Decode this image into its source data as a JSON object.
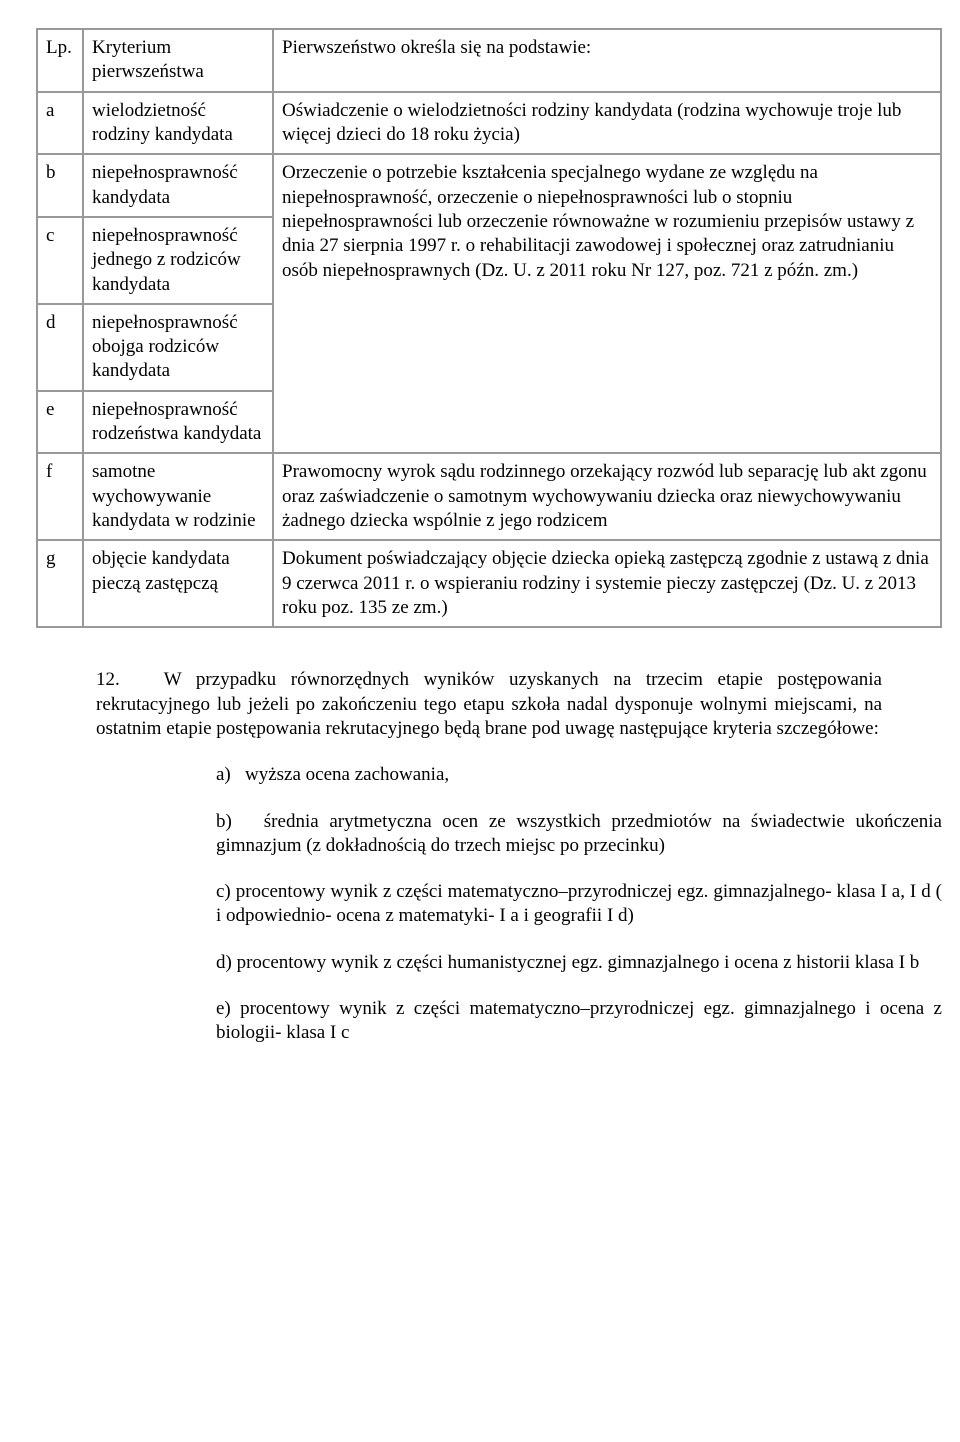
{
  "table": {
    "header": {
      "lp": "Lp.",
      "kryt": "Kryterium pierwszeństwa",
      "basis": "Pierwszeństwo określa się na podstawie:"
    },
    "rows_a_e": {
      "a": {
        "lp": "a",
        "kryt": "wielodzietność rodziny kandydata"
      },
      "b": {
        "lp": "b",
        "kryt": "niepełnosprawność kandydata"
      },
      "c": {
        "lp": "c",
        "kryt": "niepełnosprawność jednego z rodziców kandydata"
      },
      "d": {
        "lp": "d",
        "kryt": "niepełnosprawność obojga rodziców kandydata"
      },
      "e": {
        "lp": "e",
        "kryt": "niepełnosprawność rodzeństwa kandydata"
      }
    },
    "basis_a": "Oświadczenie o wielodzietności rodziny kandydata (rodzina wychowuje troje lub więcej dzieci do 18 roku życia)",
    "basis_bcd": "Orzeczenie o potrzebie kształcenia specjalnego wydane ze względu na niepełnosprawność, orzeczenie o niepełnosprawności lub o stopniu niepełnosprawności lub orzeczenie równoważne w rozumieniu przepisów ustawy z dnia 27 sierpnia 1997 r. o rehabilitacji zawodowej i społecznej oraz zatrudnianiu osób niepełnosprawnych (Dz. U. z 2011 roku Nr 127, poz. 721 z późn. zm.)",
    "row_f": {
      "lp": "f",
      "kryt": "samotne wychowywanie kandydata w rodzinie",
      "basis": "Prawomocny wyrok sądu rodzinnego orzekający rozwód lub separację lub akt zgonu oraz zaświadczenie o samotnym wychowywaniu dziecka oraz niewychowywaniu żadnego dziecka wspólnie z jego rodzicem"
    },
    "row_g": {
      "lp": "g",
      "kryt": "objęcie kandydata pieczą zastępczą",
      "basis": "Dokument poświadczający objęcie dziecka opieką zastępczą zgodnie z ustawą z dnia 9 czerwca 2011 r. o wspieraniu rodziny i systemie pieczy zastępczej (Dz. U. z 2013 roku poz. 135 ze zm.)"
    }
  },
  "para12": "12.   W przypadku równorzędnych wyników uzyskanych na trzecim etapie postępowania rekrutacyjnego lub jeżeli po zakończeniu tego etapu szkoła nadal dysponuje wolnymi miejscami, na ostatnim etapie postępowania rekrutacyjnego będą brane pod uwagę następujące kryteria szczegółowe:",
  "sub": {
    "a": "a)   wyższa ocena zachowania,",
    "b": "b)   średnia arytmetyczna ocen ze wszystkich przedmiotów na świadectwie ukończenia gimnazjum (z dokładnością do trzech miejsc po przecinku)",
    "c": "c) procentowy wynik z części matematyczno–przyrodniczej egz. gimnazjalnego- klasa I a, I d ( i odpowiednio- ocena z matematyki- I a i geografii I d)",
    "d": "d) procentowy wynik z części humanistycznej egz. gimnazjalnego i ocena z historii klasa I b",
    "e": "e) procentowy wynik z części matematyczno–przyrodniczej egz. gimnazjalnego i ocena z biologii- klasa I c"
  }
}
